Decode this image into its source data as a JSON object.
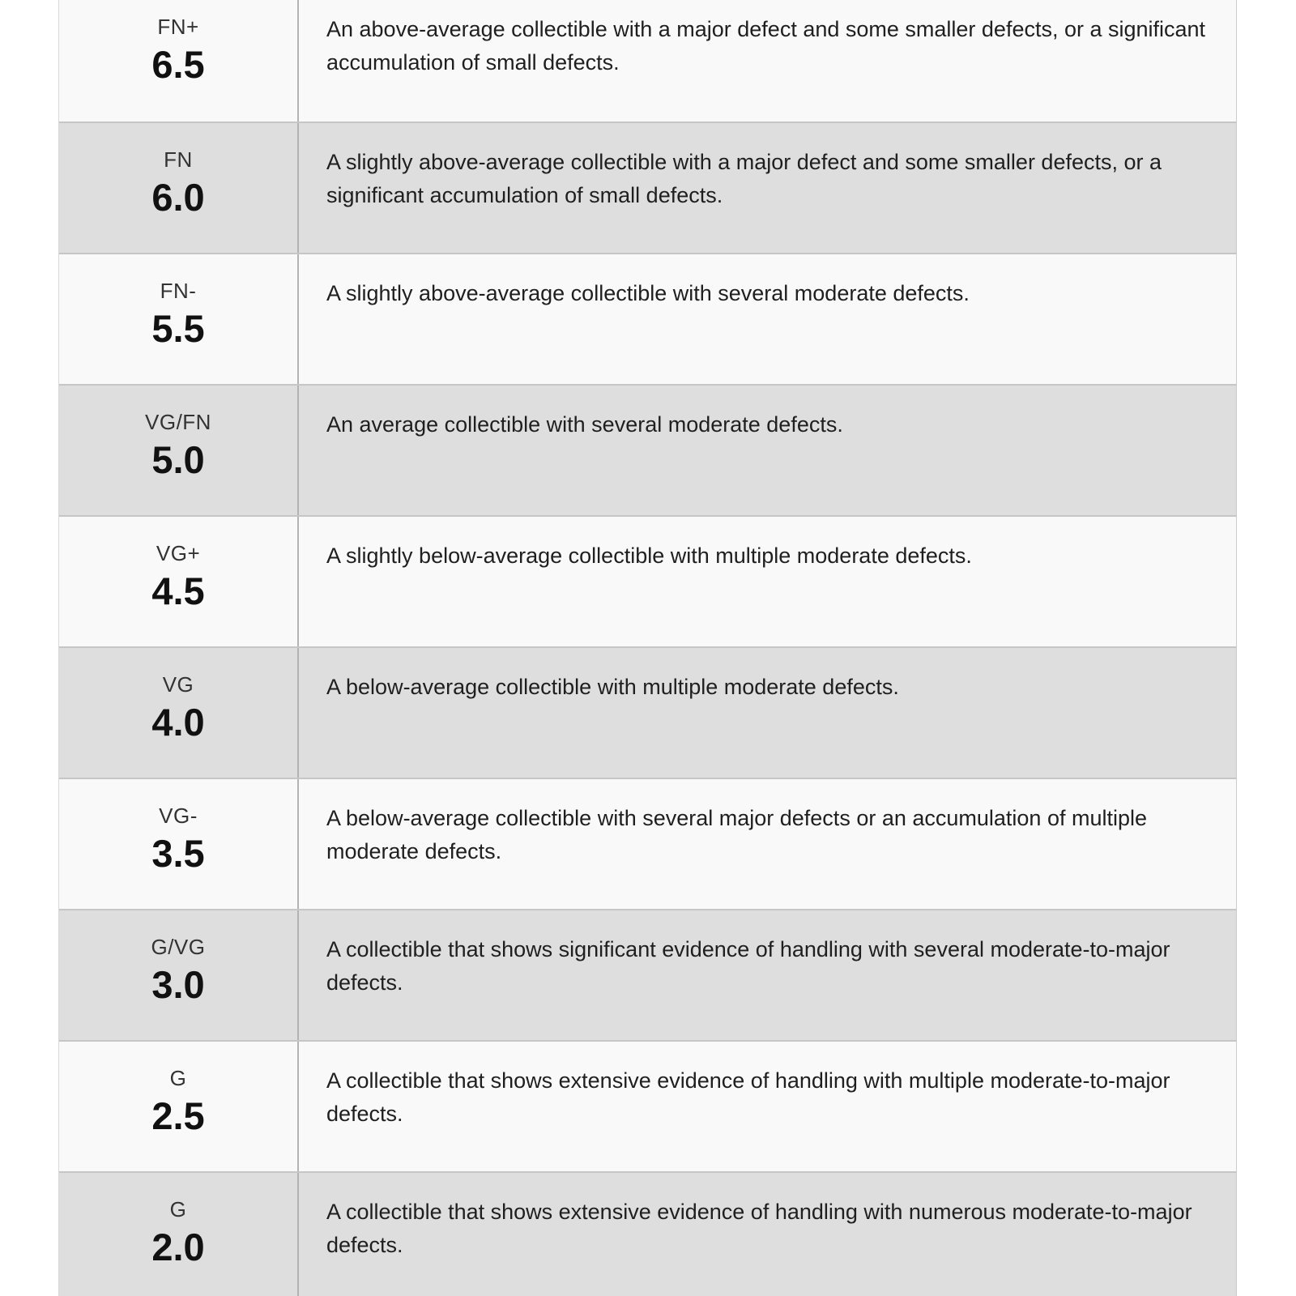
{
  "table": {
    "name": "collectible-grading-scale",
    "columns": [
      "grade",
      "description"
    ],
    "colors": {
      "row_light": "#f9f9f9",
      "row_gray": "#dedede",
      "row_border": "#c6c6c6",
      "column_divider": "#b3b3b3",
      "text": "#1f1f1f",
      "grade_value_text": "#111111"
    },
    "rows": [
      {
        "grade": "FN+",
        "value": "6.5",
        "description": "An above-average collectible with a major defect and some smaller defects, or a significant accumulation of small defects."
      },
      {
        "grade": "FN",
        "value": "6.0",
        "description": "A slightly above-average collectible with a major defect and some smaller defects, or a significant accumulation of small defects."
      },
      {
        "grade": "FN-",
        "value": "5.5",
        "description": "A slightly above-average collectible with several moderate defects."
      },
      {
        "grade": "VG/FN",
        "value": "5.0",
        "description": "An average collectible with several moderate defects."
      },
      {
        "grade": "VG+",
        "value": "4.5",
        "description": "A slightly below-average collectible with multiple moderate defects."
      },
      {
        "grade": "VG",
        "value": "4.0",
        "description": "A below-average collectible with multiple moderate defects."
      },
      {
        "grade": "VG-",
        "value": "3.5",
        "description": "A below-average collectible with several major defects or an accumulation of multiple moderate defects."
      },
      {
        "grade": "G/VG",
        "value": "3.0",
        "description": "A collectible that shows significant evidence of handling with several moderate-to-major defects."
      },
      {
        "grade": "G",
        "value": "2.5",
        "description": "A collectible that shows extensive evidence of handling with multiple moderate-to-major defects."
      },
      {
        "grade": "G",
        "value": "2.0",
        "description": "A collectible that shows extensive evidence of handling with numerous moderate-to-major defects."
      }
    ]
  }
}
